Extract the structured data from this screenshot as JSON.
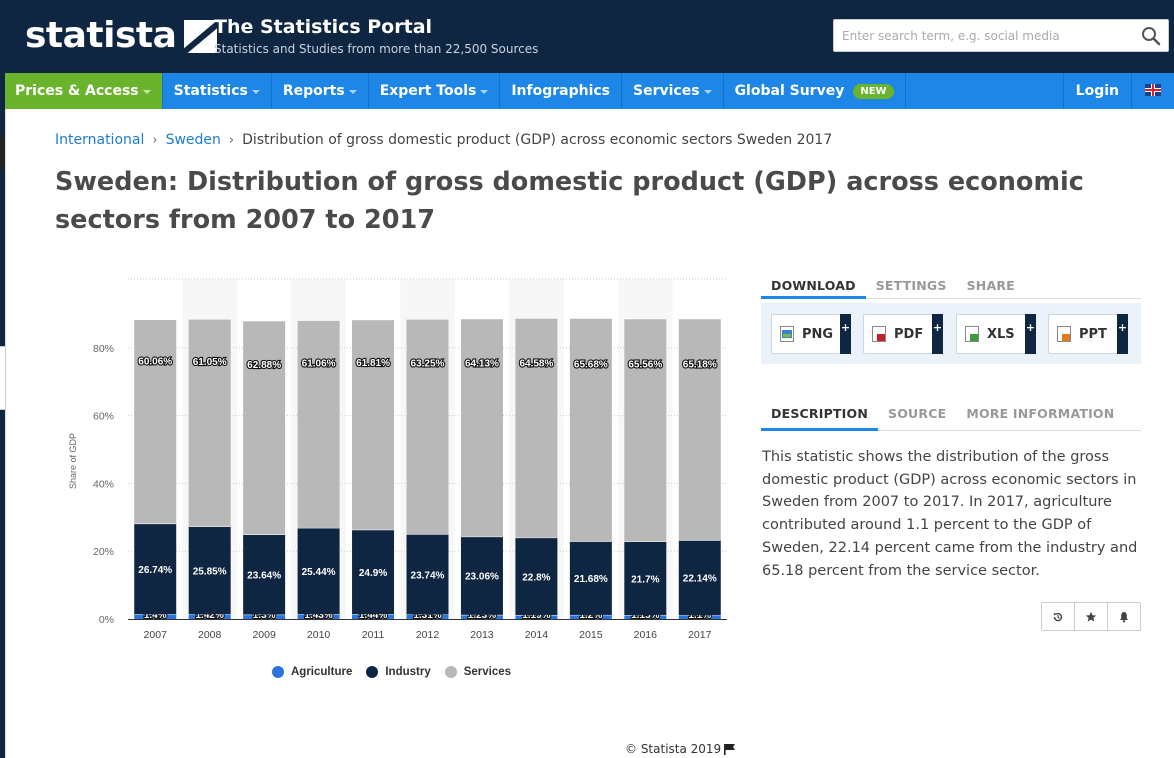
{
  "header": {
    "logo_text": "statista",
    "portal_title": "The Statistics Portal",
    "portal_subtitle": "Statistics and Studies from more than 22,500 Sources",
    "search_placeholder": "Enter search term, e.g. social media"
  },
  "nav": {
    "items": [
      {
        "label": "Prices & Access",
        "dropdown": true
      },
      {
        "label": "Statistics",
        "dropdown": true
      },
      {
        "label": "Reports",
        "dropdown": true
      },
      {
        "label": "Expert Tools",
        "dropdown": true
      },
      {
        "label": "Infographics",
        "dropdown": false
      },
      {
        "label": "Services",
        "dropdown": true
      },
      {
        "label": "Global Survey",
        "dropdown": false
      }
    ],
    "new_badge": "NEW",
    "login": "Login"
  },
  "breadcrumb": {
    "items": [
      "International",
      "Sweden"
    ],
    "current": "Distribution of gross domestic product (GDP) across economic sectors Sweden 2017"
  },
  "page_title": "Sweden: Distribution of gross domestic product (GDP) across economic sectors from 2007 to 2017",
  "chart_data": {
    "type": "bar",
    "stacked": true,
    "categories": [
      "2007",
      "2008",
      "2009",
      "2010",
      "2011",
      "2012",
      "2013",
      "2014",
      "2015",
      "2016",
      "2017"
    ],
    "series": [
      {
        "name": "Agriculture",
        "color": "#2876dd",
        "values": [
          1.4,
          1.42,
          1.3,
          1.43,
          1.44,
          1.31,
          1.23,
          1.19,
          1.2,
          1.15,
          1.1
        ],
        "labels": [
          "1.4%",
          "1.42%",
          "1.3%",
          "1.43%",
          "1.44%",
          "1.31%",
          "1.23%",
          "1.19%",
          "1.2%",
          "1.15%",
          "1.1%"
        ]
      },
      {
        "name": "Industry",
        "color": "#0f2643",
        "values": [
          26.74,
          25.85,
          23.64,
          25.44,
          24.9,
          23.74,
          23.06,
          22.8,
          21.68,
          21.7,
          22.14
        ],
        "labels": [
          "26.74%",
          "25.85%",
          "23.64%",
          "25.44%",
          "24.9%",
          "23.74%",
          "23.06%",
          "22.8%",
          "21.68%",
          "21.7%",
          "22.14%"
        ]
      },
      {
        "name": "Services",
        "color": "#b8b8b8",
        "values": [
          60.06,
          61.05,
          62.88,
          61.06,
          61.81,
          63.25,
          64.13,
          64.58,
          65.68,
          65.56,
          65.18
        ],
        "labels": [
          "60.06%",
          "61.05%",
          "62.88%",
          "61.06%",
          "61.81%",
          "63.25%",
          "64.13%",
          "64.58%",
          "65.68%",
          "65.56%",
          "65.18%"
        ]
      }
    ],
    "ylabel": "Share of GDP",
    "yticks": [
      "0%",
      "20%",
      "40%",
      "60%",
      "80%"
    ],
    "ylim": [
      0,
      100
    ],
    "grid": true,
    "legend": "bottom-center"
  },
  "copyright": "© Statista 2019",
  "panel": {
    "tabs_top": [
      "DOWNLOAD",
      "SETTINGS",
      "SHARE"
    ],
    "downloads": [
      "PNG",
      "PDF",
      "XLS",
      "PPT"
    ],
    "plus": "+",
    "tabs_info": [
      "DESCRIPTION",
      "SOURCE",
      "MORE INFORMATION"
    ],
    "description": "This statistic shows the distribution of the gross domestic product (GDP) across economic sectors in Sweden from 2007 to 2017. In 2017, agriculture contributed around 1.1 percent to the GDP of Sweden, 22.14 percent came from the industry and 65.18 percent from the service sector."
  },
  "icons": [
    "search-icon",
    "chevron-down-icon",
    "uk-flag-icon",
    "png-file-icon",
    "pdf-file-icon",
    "xls-file-icon",
    "ppt-file-icon",
    "history-icon",
    "star-icon",
    "bell-icon",
    "flag-icon"
  ]
}
